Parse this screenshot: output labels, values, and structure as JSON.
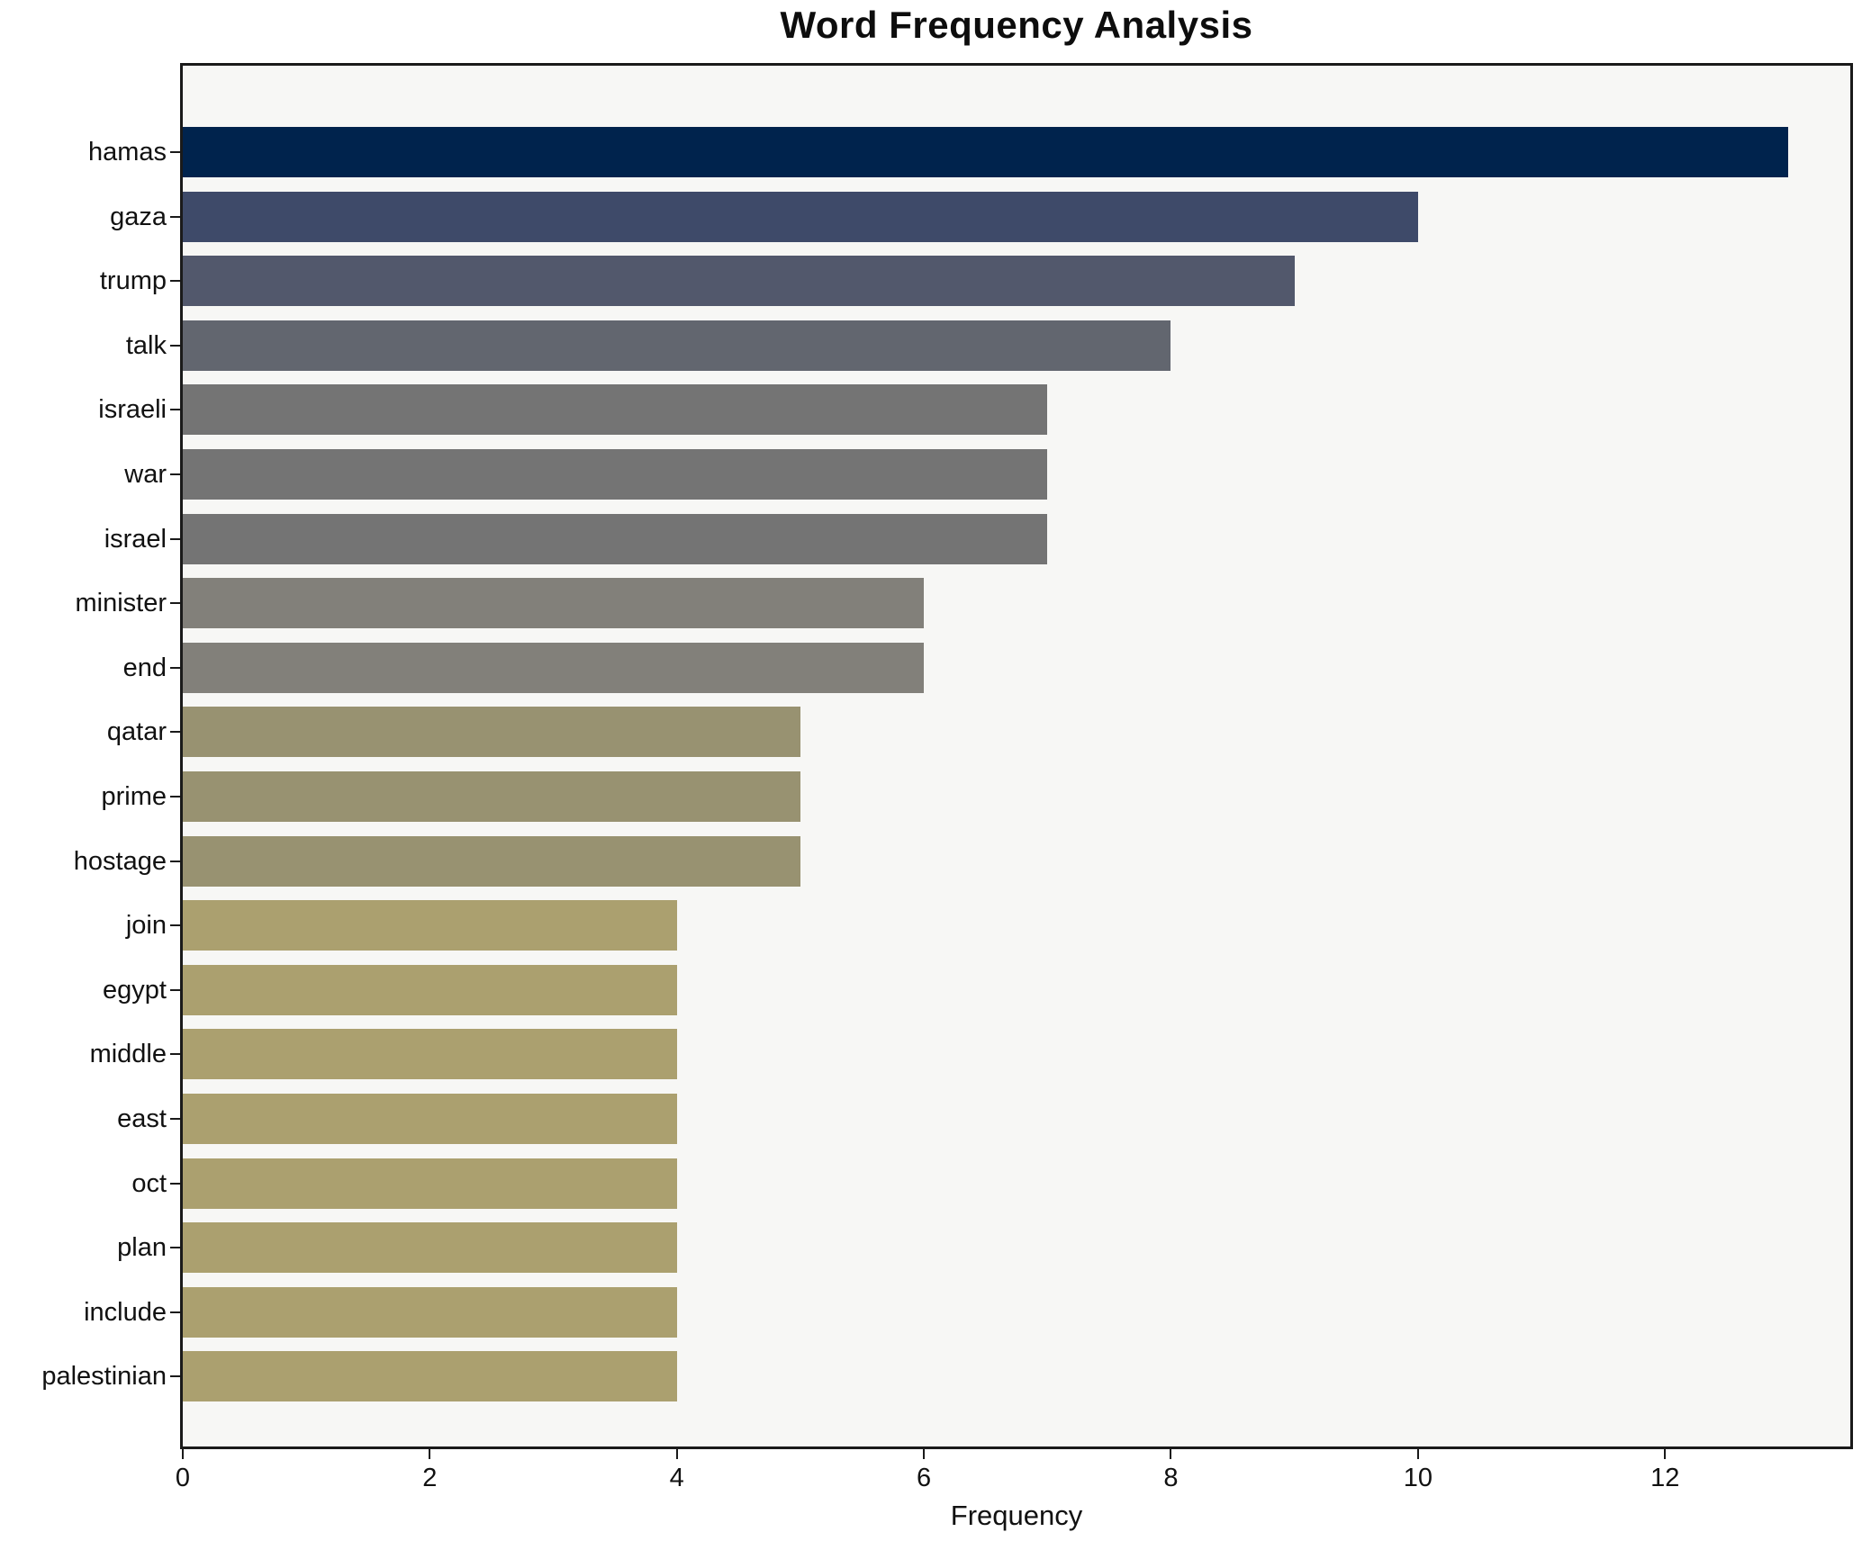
{
  "figure": {
    "background": "#ffffff",
    "plot_background": "#f7f7f5",
    "spine_color": "#1a1a1a",
    "text_color": "#111111"
  },
  "chart_data": {
    "type": "bar",
    "orientation": "horizontal",
    "title": "Word Frequency Analysis",
    "xlabel": "Frequency",
    "ylabel": "",
    "categories": [
      "hamas",
      "gaza",
      "trump",
      "talk",
      "israeli",
      "war",
      "israel",
      "minister",
      "end",
      "qatar",
      "prime",
      "hostage",
      "join",
      "egypt",
      "middle",
      "east",
      "oct",
      "plan",
      "include",
      "palestinian"
    ],
    "values": [
      13,
      10,
      9,
      8,
      7,
      7,
      7,
      6,
      6,
      5,
      5,
      5,
      4,
      4,
      4,
      4,
      4,
      4,
      4,
      4
    ],
    "bar_colors": [
      "#00234d",
      "#3e4a69",
      "#52586c",
      "#62666f",
      "#747474",
      "#747474",
      "#747474",
      "#82807a",
      "#82807a",
      "#989271",
      "#989271",
      "#989271",
      "#aba06f",
      "#aba06f",
      "#aba06f",
      "#aba06f",
      "#aba06f",
      "#aba06f",
      "#aba06f",
      "#aba06f"
    ],
    "xlim": [
      0,
      13.5
    ],
    "xticks": [
      0,
      2,
      4,
      6,
      8,
      10,
      12
    ],
    "grid": false,
    "legend_position": "none"
  }
}
